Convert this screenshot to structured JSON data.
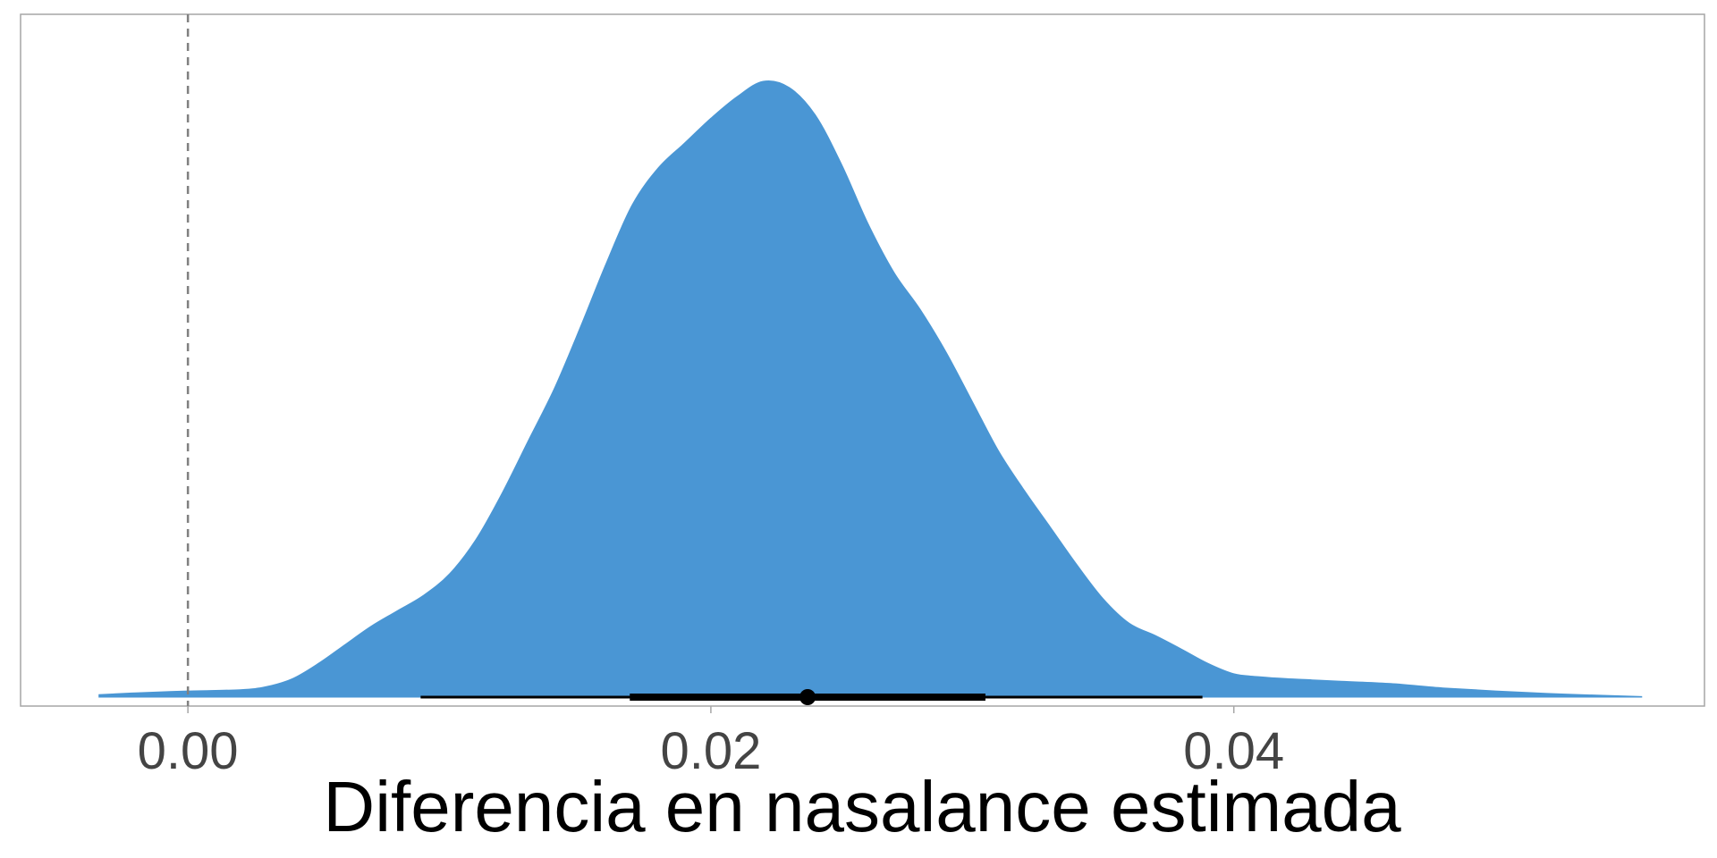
{
  "chart_data": {
    "type": "area",
    "xlabel": "Diferencia en nasalance estimada",
    "ylabel": "",
    "xlim": [
      -0.0064,
      0.058
    ],
    "ylim": [
      0,
      1
    ],
    "x_ticks": [
      {
        "value": 0.0,
        "label": "0.00"
      },
      {
        "value": 0.02,
        "label": "0.02"
      },
      {
        "value": 0.04,
        "label": "0.04"
      }
    ],
    "reference_line": {
      "x": 0.0,
      "style": "dashed",
      "color": "#808080"
    },
    "density": {
      "color": "#4a96d4",
      "x": [
        -0.0034,
        -0.002,
        0.0,
        0.002,
        0.003,
        0.004,
        0.005,
        0.006,
        0.007,
        0.008,
        0.009,
        0.01,
        0.011,
        0.012,
        0.013,
        0.014,
        0.015,
        0.016,
        0.017,
        0.018,
        0.019,
        0.02,
        0.021,
        0.022,
        0.023,
        0.024,
        0.025,
        0.026,
        0.027,
        0.028,
        0.029,
        0.03,
        0.031,
        0.032,
        0.033,
        0.034,
        0.035,
        0.036,
        0.037,
        0.038,
        0.039,
        0.04,
        0.041,
        0.042,
        0.043,
        0.044,
        0.046,
        0.048,
        0.05,
        0.052,
        0.054,
        0.0556
      ],
      "y": [
        0.004,
        0.007,
        0.01,
        0.012,
        0.017,
        0.03,
        0.055,
        0.085,
        0.115,
        0.14,
        0.165,
        0.2,
        0.255,
        0.33,
        0.415,
        0.5,
        0.6,
        0.705,
        0.8,
        0.86,
        0.9,
        0.94,
        0.975,
        1.0,
        0.99,
        0.945,
        0.865,
        0.77,
        0.69,
        0.63,
        0.56,
        0.48,
        0.4,
        0.335,
        0.275,
        0.215,
        0.16,
        0.12,
        0.1,
        0.078,
        0.055,
        0.038,
        0.033,
        0.03,
        0.028,
        0.026,
        0.022,
        0.015,
        0.01,
        0.006,
        0.003,
        0.001
      ]
    },
    "point_interval": {
      "color": "#000000",
      "median": 0.0237,
      "inner": [
        0.0169,
        0.0305
      ],
      "outer": [
        0.0089,
        0.0388
      ]
    },
    "grid": false,
    "legend": "none"
  }
}
